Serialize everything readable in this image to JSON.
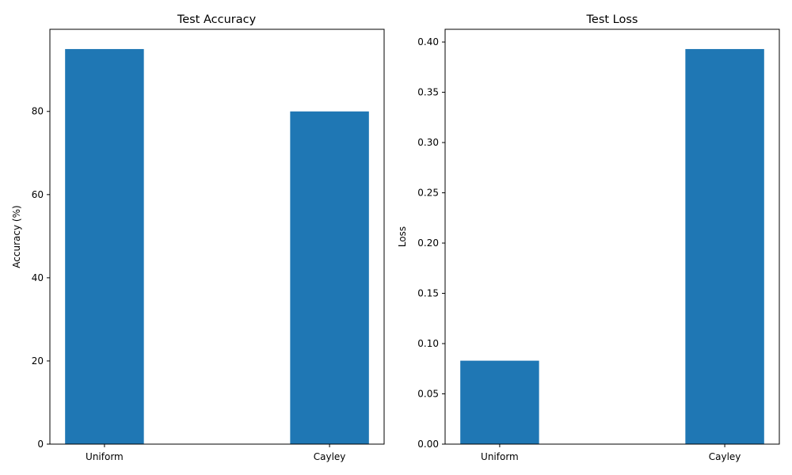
{
  "chart_data": [
    {
      "type": "bar",
      "title": "Test Accuracy",
      "xlabel": "",
      "ylabel": "Accuracy (%)",
      "categories": [
        "Uniform",
        "Cayley"
      ],
      "values": [
        95.0,
        80.0
      ],
      "ylim": [
        0,
        99.75
      ],
      "yticks": [
        0,
        20,
        40,
        60,
        80
      ],
      "ytick_labels": [
        "0",
        "20",
        "40",
        "60",
        "80"
      ],
      "bar_color": "#1f77b4",
      "grid": false
    },
    {
      "type": "bar",
      "title": "Test Loss",
      "xlabel": "",
      "ylabel": "Loss",
      "categories": [
        "Uniform",
        "Cayley"
      ],
      "values": [
        0.083,
        0.393
      ],
      "ylim": [
        0,
        0.41265
      ],
      "yticks": [
        0,
        0.05,
        0.1,
        0.15,
        0.2,
        0.25,
        0.3,
        0.35,
        0.4
      ],
      "ytick_labels": [
        "0.00",
        "0.05",
        "0.10",
        "0.15",
        "0.20",
        "0.25",
        "0.30",
        "0.35",
        "0.40"
      ],
      "bar_color": "#1f77b4",
      "grid": false
    }
  ]
}
